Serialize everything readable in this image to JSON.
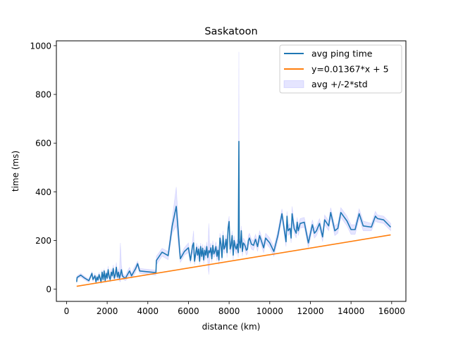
{
  "chart_data": {
    "type": "line",
    "title": "Saskatoon",
    "xlabel": "distance (km)",
    "ylabel": "time (ms)",
    "xlim": [
      -500,
      16700
    ],
    "ylim": [
      -50,
      1020
    ],
    "xticks": [
      0,
      2000,
      4000,
      6000,
      8000,
      10000,
      12000,
      14000,
      16000
    ],
    "yticks": [
      0,
      200,
      400,
      600,
      800,
      1000
    ],
    "grid": false,
    "legend_position": "top-right",
    "colors": {
      "avg": "#1f77b4",
      "fit": "#ff7f0e",
      "band": "#0000ff"
    },
    "legend": [
      {
        "label": "avg ping time",
        "kind": "line",
        "color": "#1f77b4"
      },
      {
        "label": "y=0.01367*x + 5",
        "kind": "line",
        "color": "#ff7f0e"
      },
      {
        "label": "avg +/-2*std",
        "kind": "patch",
        "color": "#0000ff"
      }
    ],
    "series": [
      {
        "name": "avg ping time",
        "x": [
          500,
          520,
          700,
          900,
          1100,
          1250,
          1300,
          1400,
          1450,
          1500,
          1550,
          1600,
          1650,
          1700,
          1750,
          1800,
          1850,
          1900,
          1950,
          2000,
          2050,
          2100,
          2150,
          2200,
          2250,
          2300,
          2350,
          2400,
          2450,
          2500,
          2550,
          2600,
          2650,
          2700,
          2750,
          2800,
          2900,
          3000,
          3100,
          3200,
          3300,
          3400,
          3500,
          3600,
          4400,
          4420,
          4700,
          5000,
          5200,
          5400,
          5600,
          5800,
          6000,
          6100,
          6200,
          6250,
          6300,
          6400,
          6450,
          6500,
          6550,
          6600,
          6650,
          6700,
          6750,
          6800,
          6850,
          6900,
          6950,
          7000,
          7050,
          7100,
          7150,
          7200,
          7250,
          7300,
          7350,
          7400,
          7450,
          7500,
          7550,
          7600,
          7650,
          7700,
          7750,
          7800,
          7850,
          7900,
          7950,
          8000,
          8050,
          8100,
          8150,
          8200,
          8250,
          8300,
          8350,
          8400,
          8450,
          8480,
          8500,
          8550,
          8600,
          8650,
          8700,
          8750,
          8800,
          8850,
          8900,
          8950,
          9000,
          9100,
          9200,
          9300,
          9400,
          9500,
          9600,
          9700,
          9800,
          9900,
          10000,
          10200,
          10400,
          10600,
          10800,
          10850,
          10900,
          11000,
          11050,
          11100,
          11200,
          11300,
          11350,
          11400,
          11500,
          11700,
          11900,
          12100,
          12200,
          12300,
          12450,
          12600,
          12700,
          12900,
          13000,
          13200,
          13350,
          13500,
          13800,
          14000,
          14200,
          14400,
          14600,
          15000,
          15200,
          15300,
          15600,
          15950
        ],
        "y": [
          30,
          48,
          58,
          45,
          35,
          65,
          40,
          55,
          30,
          50,
          38,
          60,
          45,
          30,
          70,
          40,
          75,
          35,
          65,
          45,
          80,
          50,
          40,
          70,
          55,
          85,
          45,
          60,
          90,
          50,
          70,
          45,
          60,
          80,
          55,
          50,
          45,
          60,
          75,
          55,
          70,
          85,
          105,
          75,
          68,
          118,
          152,
          138,
          260,
          340,
          125,
          155,
          170,
          118,
          178,
          190,
          115,
          172,
          140,
          165,
          115,
          175,
          135,
          168,
          120,
          160,
          140,
          175,
          130,
          158,
          150,
          170,
          125,
          180,
          145,
          155,
          175,
          135,
          160,
          120,
          210,
          185,
          130,
          220,
          165,
          175,
          205,
          150,
          250,
          278,
          165,
          180,
          220,
          140,
          200,
          175,
          165,
          185,
          150,
          607,
          200,
          170,
          240,
          155,
          190,
          185,
          175,
          160,
          165,
          200,
          210,
          185,
          180,
          205,
          175,
          220,
          195,
          170,
          210,
          200,
          190,
          155,
          220,
          310,
          195,
          300,
          240,
          250,
          210,
          310,
          250,
          230,
          275,
          240,
          270,
          275,
          190,
          265,
          230,
          240,
          270,
          215,
          285,
          260,
          315,
          240,
          250,
          315,
          280,
          245,
          245,
          310,
          260,
          255,
          300,
          290,
          285,
          255
        ],
        "band_upper": [
          35,
          55,
          65,
          52,
          42,
          72,
          48,
          65,
          38,
          58,
          45,
          70,
          52,
          38,
          80,
          48,
          85,
          42,
          75,
          55,
          95,
          60,
          50,
          85,
          65,
          100,
          55,
          75,
          110,
          60,
          85,
          55,
          190,
          100,
          70,
          60,
          55,
          75,
          90,
          65,
          85,
          100,
          115,
          85,
          78,
          135,
          168,
          155,
          290,
          420,
          140,
          170,
          190,
          130,
          200,
          240,
          130,
          190,
          160,
          180,
          130,
          190,
          150,
          185,
          135,
          180,
          160,
          195,
          145,
          270,
          170,
          190,
          140,
          200,
          160,
          175,
          195,
          155,
          180,
          140,
          230,
          205,
          145,
          240,
          185,
          195,
          225,
          170,
          270,
          300,
          185,
          200,
          240,
          160,
          220,
          195,
          185,
          205,
          170,
          975,
          220,
          190,
          260,
          175,
          210,
          205,
          195,
          180,
          185,
          220,
          230,
          205,
          200,
          225,
          195,
          240,
          215,
          190,
          230,
          220,
          210,
          175,
          240,
          330,
          215,
          320,
          260,
          270,
          230,
          340,
          270,
          250,
          295,
          260,
          290,
          295,
          210,
          285,
          250,
          260,
          290,
          235,
          305,
          280,
          335,
          260,
          270,
          335,
          300,
          265,
          265,
          330,
          280,
          270,
          320,
          305,
          300,
          270
        ],
        "band_lower": [
          25,
          42,
          50,
          38,
          28,
          58,
          32,
          45,
          22,
          42,
          30,
          50,
          38,
          22,
          60,
          32,
          65,
          28,
          55,
          35,
          65,
          40,
          30,
          55,
          45,
          70,
          35,
          45,
          70,
          40,
          55,
          35,
          30,
          60,
          40,
          40,
          35,
          45,
          60,
          45,
          55,
          70,
          95,
          65,
          58,
          100,
          136,
          121,
          230,
          260,
          110,
          140,
          150,
          106,
          156,
          140,
          100,
          154,
          120,
          150,
          100,
          160,
          120,
          151,
          105,
          140,
          120,
          155,
          115,
          60,
          130,
          150,
          110,
          160,
          130,
          135,
          155,
          115,
          140,
          100,
          190,
          165,
          115,
          200,
          145,
          155,
          185,
          130,
          230,
          256,
          145,
          160,
          200,
          120,
          180,
          155,
          145,
          165,
          130,
          240,
          180,
          150,
          220,
          135,
          170,
          165,
          155,
          140,
          145,
          180,
          190,
          165,
          160,
          185,
          155,
          200,
          175,
          150,
          190,
          180,
          170,
          135,
          200,
          290,
          175,
          280,
          220,
          230,
          190,
          280,
          230,
          210,
          255,
          220,
          250,
          255,
          170,
          245,
          210,
          220,
          250,
          195,
          265,
          240,
          295,
          220,
          230,
          295,
          260,
          225,
          225,
          290,
          240,
          240,
          280,
          275,
          270,
          240
        ]
      },
      {
        "name": "y=0.01367*x + 5",
        "x": [
          500,
          15950
        ],
        "y": [
          11.8,
          223.0
        ]
      }
    ]
  }
}
